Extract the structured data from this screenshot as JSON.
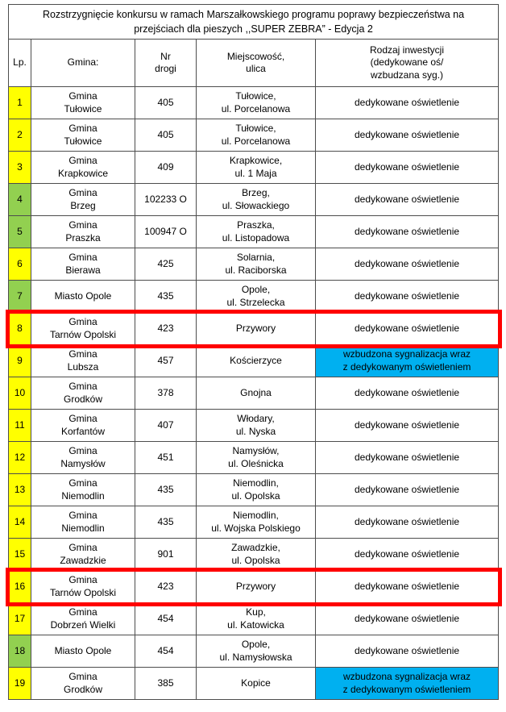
{
  "title": "Rozstrzygnięcie konkursu w ramach Marszałkowskiego programu poprawy bezpieczeństwa na\nprzejściach dla pieszych ,,SUPER ZEBRA” - Edycja 2",
  "header": {
    "lp": "Lp.",
    "gmina": "Gmina:",
    "nr_drogi": "Nr\ndrogi",
    "miejscowosc": "Miejscowość,\nulica",
    "rodzaj": "Rodzaj inwestycji\n(dedykowane oś/\nwzbudzana syg.)"
  },
  "colors": {
    "yellow": "#FFFF00",
    "green": "#92D050",
    "blue": "#00B0F0",
    "red_outline": "#FF0000",
    "grid_border": "#4d4d4d"
  },
  "rows": [
    {
      "lp": "1",
      "lp_color": "yellow",
      "gmina": "Gmina\nTułowice",
      "nr_drogi": "405",
      "miejscowosc": "Tułowice,\nul. Porcelanowa",
      "rodzaj": "dedykowane oświetlenie",
      "rodzaj_blue": false,
      "red_outline": false
    },
    {
      "lp": "2",
      "lp_color": "yellow",
      "gmina": "Gmina\nTułowice",
      "nr_drogi": "405",
      "miejscowosc": "Tułowice,\nul. Porcelanowa",
      "rodzaj": "dedykowane oświetlenie",
      "rodzaj_blue": false,
      "red_outline": false
    },
    {
      "lp": "3",
      "lp_color": "yellow",
      "gmina": "Gmina\nKrapkowice",
      "nr_drogi": "409",
      "miejscowosc": "Krapkowice,\nul. 1 Maja",
      "rodzaj": "dedykowane oświetlenie",
      "rodzaj_blue": false,
      "red_outline": false
    },
    {
      "lp": "4",
      "lp_color": "green",
      "gmina": "Gmina\nBrzeg",
      "nr_drogi": "102233 O",
      "miejscowosc": "Brzeg,\nul. Słowackiego",
      "rodzaj": "dedykowane oświetlenie",
      "rodzaj_blue": false,
      "red_outline": false
    },
    {
      "lp": "5",
      "lp_color": "green",
      "gmina": "Gmina\nPraszka",
      "nr_drogi": "100947 O",
      "miejscowosc": "Praszka,\nul. Listopadowa",
      "rodzaj": "dedykowane oświetlenie",
      "rodzaj_blue": false,
      "red_outline": false
    },
    {
      "lp": "6",
      "lp_color": "yellow",
      "gmina": "Gmina\nBierawa",
      "nr_drogi": "425",
      "miejscowosc": "Solarnia,\nul. Raciborska",
      "rodzaj": "dedykowane oświetlenie",
      "rodzaj_blue": false,
      "red_outline": false
    },
    {
      "lp": "7",
      "lp_color": "green",
      "gmina": "Miasto Opole",
      "nr_drogi": "435",
      "miejscowosc": "Opole,\nul. Strzelecka",
      "rodzaj": "dedykowane oświetlenie",
      "rodzaj_blue": false,
      "red_outline": false
    },
    {
      "lp": "8",
      "lp_color": "yellow",
      "gmina": "Gmina\nTarnów Opolski",
      "nr_drogi": "423",
      "miejscowosc": "Przywory",
      "rodzaj": "dedykowane oświetlenie",
      "rodzaj_blue": false,
      "red_outline": true
    },
    {
      "lp": "9",
      "lp_color": "yellow",
      "gmina": "Gmina\nLubsza",
      "nr_drogi": "457",
      "miejscowosc": "Kościerzyce",
      "rodzaj": "wzbudzona sygnalizacja wraz\nz dedykowanym oświetleniem",
      "rodzaj_blue": true,
      "red_outline": false
    },
    {
      "lp": "10",
      "lp_color": "yellow",
      "gmina": "Gmina\nGrodków",
      "nr_drogi": "378",
      "miejscowosc": "Gnojna",
      "rodzaj": "dedykowane oświetlenie",
      "rodzaj_blue": false,
      "red_outline": false
    },
    {
      "lp": "11",
      "lp_color": "yellow",
      "gmina": "Gmina\nKorfantów",
      "nr_drogi": "407",
      "miejscowosc": "Włodary,\nul. Nyska",
      "rodzaj": "dedykowane oświetlenie",
      "rodzaj_blue": false,
      "red_outline": false
    },
    {
      "lp": "12",
      "lp_color": "yellow",
      "gmina": "Gmina\nNamysłów",
      "nr_drogi": "451",
      "miejscowosc": "Namysłów,\nul. Oleśnicka",
      "rodzaj": "dedykowane oświetlenie",
      "rodzaj_blue": false,
      "red_outline": false
    },
    {
      "lp": "13",
      "lp_color": "yellow",
      "gmina": "Gmina\nNiemodlin",
      "nr_drogi": "435",
      "miejscowosc": "Niemodlin,\nul. Opolska",
      "rodzaj": "dedykowane oświetlenie",
      "rodzaj_blue": false,
      "red_outline": false
    },
    {
      "lp": "14",
      "lp_color": "yellow",
      "gmina": "Gmina\nNiemodlin",
      "nr_drogi": "435",
      "miejscowosc": "Niemodlin,\nul. Wojska Polskiego",
      "rodzaj": "dedykowane oświetlenie",
      "rodzaj_blue": false,
      "red_outline": false
    },
    {
      "lp": "15",
      "lp_color": "yellow",
      "gmina": "Gmina\nZawadzkie",
      "nr_drogi": "901",
      "miejscowosc": "Zawadzkie,\nul. Opolska",
      "rodzaj": "dedykowane oświetlenie",
      "rodzaj_blue": false,
      "red_outline": false
    },
    {
      "lp": "16",
      "lp_color": "yellow",
      "gmina": "Gmina\nTarnów Opolski",
      "nr_drogi": "423",
      "miejscowosc": "Przywory",
      "rodzaj": "dedykowane oświetlenie",
      "rodzaj_blue": false,
      "red_outline": true
    },
    {
      "lp": "17",
      "lp_color": "yellow",
      "gmina": "Gmina\nDobrzeń Wielki",
      "nr_drogi": "454",
      "miejscowosc": "Kup,\nul. Katowicka",
      "rodzaj": "dedykowane oświetlenie",
      "rodzaj_blue": false,
      "red_outline": false
    },
    {
      "lp": "18",
      "lp_color": "green",
      "gmina": "Miasto Opole",
      "nr_drogi": "454",
      "miejscowosc": "Opole,\nul. Namysłowska",
      "rodzaj": "dedykowane oświetlenie",
      "rodzaj_blue": false,
      "red_outline": false
    },
    {
      "lp": "19",
      "lp_color": "yellow",
      "gmina": "Gmina\nGrodków",
      "nr_drogi": "385",
      "miejscowosc": "Kopice",
      "rodzaj": "wzbudzona sygnalizacja wraz\nz dedykowanym oświetleniem",
      "rodzaj_blue": true,
      "red_outline": false
    }
  ]
}
